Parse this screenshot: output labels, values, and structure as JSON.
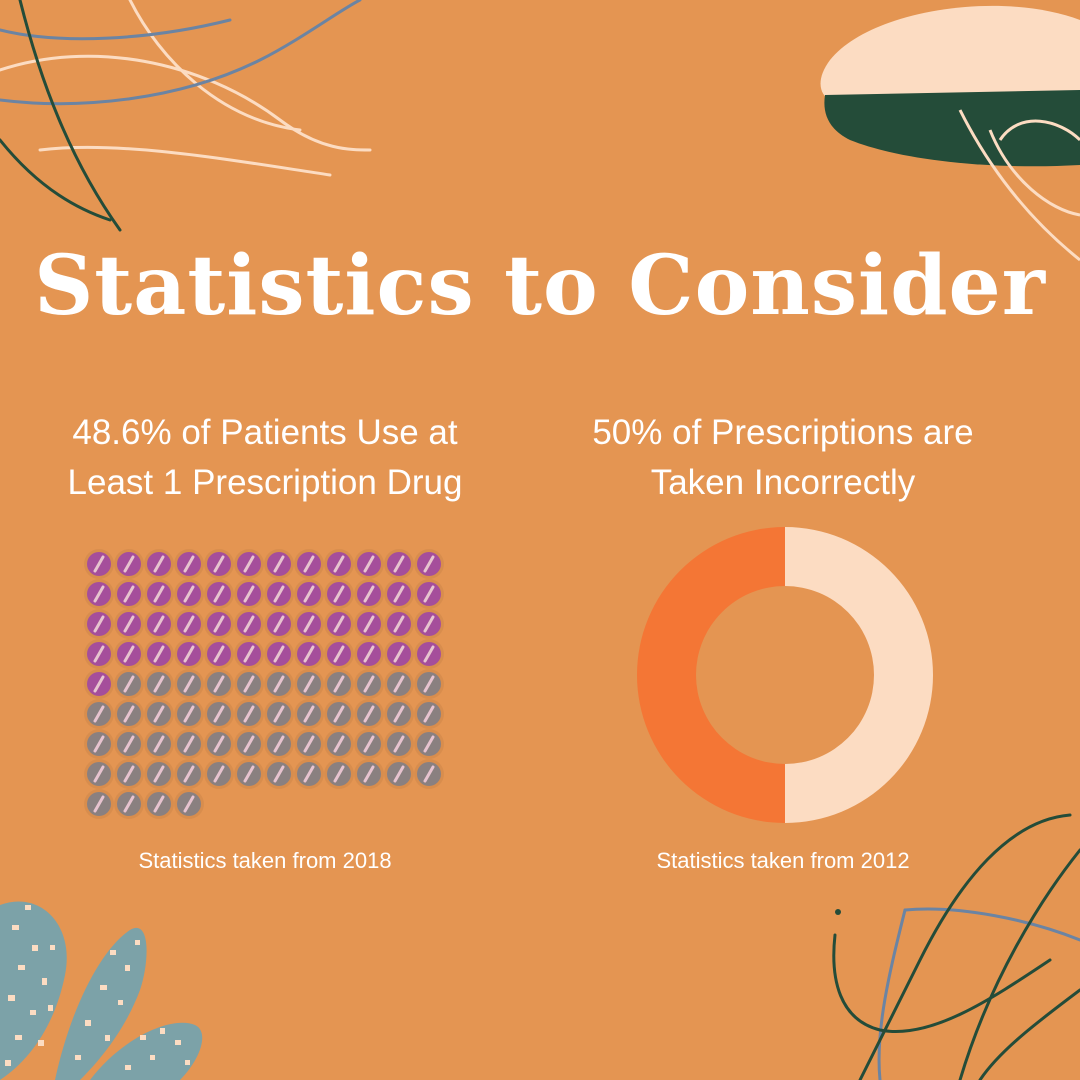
{
  "title": "Statistics to Consider",
  "stat_left": {
    "headline_line1": "48.6% of Patients Use at",
    "headline_line2": "Least 1 Prescription Drug",
    "source": "Statistics taken from 2018"
  },
  "stat_right": {
    "headline_line1": "50% of Prescriptions are",
    "headline_line2": "Taken Incorrectly",
    "source": "Statistics taken from 2012"
  },
  "colors": {
    "background": "#e49552",
    "pill_highlight": "#a54e9b",
    "pill_other": "#8a8080",
    "donut_incorrect": "#f47635",
    "donut_correct": "#fcdcc2",
    "leaf_green": "#244c39",
    "line_blue": "#6b84a3",
    "cream": "#fcdcc2",
    "teal_leaf": "#7ca2a8"
  },
  "chart_data": [
    {
      "type": "pictograph",
      "total_icons": 100,
      "highlighted_icons": 49,
      "percent": 48.6,
      "columns": 12,
      "icon": "pill-icon"
    },
    {
      "type": "donut",
      "slices": [
        50,
        50
      ]
    }
  ]
}
